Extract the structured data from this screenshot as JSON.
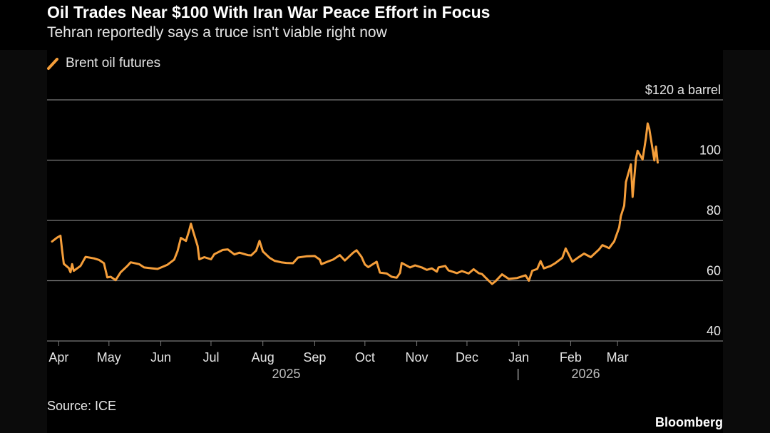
{
  "header": {
    "title": "Oil Trades Near $100 With Iran War Peace Effort in Focus",
    "subtitle": "Tehran reportedly says a truce isn't viable right now"
  },
  "footer": {
    "source": "Source: ICE",
    "brand": "Bloomberg"
  },
  "colors": {
    "line": "#f59e3a",
    "grid": "#7a7a7a",
    "background": "#000000"
  },
  "chart_data": {
    "type": "line",
    "title": "Oil Trades Near $100 With Iran War Peace Effort in Focus",
    "subtitle": "Tehran reportedly says a truce isn't viable right now",
    "legend": "top-left",
    "grid": "horizontal",
    "ylim": [
      40,
      120
    ],
    "y_ticks": [
      {
        "value": 120,
        "label": "$120 a barrel"
      },
      {
        "value": 100,
        "label": "100"
      },
      {
        "value": 80,
        "label": "80"
      },
      {
        "value": 60,
        "label": "60"
      },
      {
        "value": 40,
        "label": "40"
      }
    ],
    "xlim": [
      "2025-03-25",
      "2026-04-10"
    ],
    "x_ticks": [
      {
        "date": "2025-04-01",
        "label": "Apr"
      },
      {
        "date": "2025-05-01",
        "label": "May"
      },
      {
        "date": "2025-06-01",
        "label": "Jun"
      },
      {
        "date": "2025-07-01",
        "label": "Jul"
      },
      {
        "date": "2025-08-01",
        "label": "Aug"
      },
      {
        "date": "2025-09-01",
        "label": "Sep"
      },
      {
        "date": "2025-10-01",
        "label": "Oct"
      },
      {
        "date": "2025-11-01",
        "label": "Nov"
      },
      {
        "date": "2025-12-01",
        "label": "Dec"
      },
      {
        "date": "2026-01-01",
        "label": "Jan"
      },
      {
        "date": "2026-02-01",
        "label": "Feb"
      },
      {
        "date": "2026-03-01",
        "label": "Mar"
      }
    ],
    "year_labels": [
      {
        "date": "2025-08-15",
        "label": "2025"
      },
      {
        "date": "2026-02-10",
        "label": "2026"
      }
    ],
    "year_divider": "2026-01-01",
    "series": [
      {
        "name": "Brent oil futures",
        "color": "#f59e3a",
        "points": [
          [
            "2025-03-28",
            73.0
          ],
          [
            "2025-03-31",
            74.3
          ],
          [
            "2025-04-02",
            74.9
          ],
          [
            "2025-04-03",
            70.1
          ],
          [
            "2025-04-04",
            65.6
          ],
          [
            "2025-04-07",
            64.2
          ],
          [
            "2025-04-08",
            62.8
          ],
          [
            "2025-04-09",
            65.5
          ],
          [
            "2025-04-10",
            63.3
          ],
          [
            "2025-04-14",
            64.9
          ],
          [
            "2025-04-17",
            67.9
          ],
          [
            "2025-04-22",
            67.4
          ],
          [
            "2025-04-25",
            66.9
          ],
          [
            "2025-04-28",
            65.8
          ],
          [
            "2025-04-30",
            61.1
          ],
          [
            "2025-05-02",
            61.3
          ],
          [
            "2025-05-05",
            60.2
          ],
          [
            "2025-05-08",
            62.8
          ],
          [
            "2025-05-12",
            64.9
          ],
          [
            "2025-05-14",
            66.1
          ],
          [
            "2025-05-19",
            65.5
          ],
          [
            "2025-05-22",
            64.4
          ],
          [
            "2025-05-27",
            64.1
          ],
          [
            "2025-05-30",
            63.9
          ],
          [
            "2025-06-02",
            64.6
          ],
          [
            "2025-06-05",
            65.3
          ],
          [
            "2025-06-09",
            67.0
          ],
          [
            "2025-06-11",
            69.8
          ],
          [
            "2025-06-13",
            74.2
          ],
          [
            "2025-06-16",
            73.2
          ],
          [
            "2025-06-18",
            76.7
          ],
          [
            "2025-06-19",
            78.9
          ],
          [
            "2025-06-20",
            77.0
          ],
          [
            "2025-06-23",
            71.5
          ],
          [
            "2025-06-24",
            67.1
          ],
          [
            "2025-06-27",
            67.8
          ],
          [
            "2025-07-01",
            67.1
          ],
          [
            "2025-07-03",
            68.8
          ],
          [
            "2025-07-08",
            70.2
          ],
          [
            "2025-07-11",
            70.4
          ],
          [
            "2025-07-15",
            68.7
          ],
          [
            "2025-07-18",
            69.3
          ],
          [
            "2025-07-23",
            68.5
          ],
          [
            "2025-07-25",
            68.4
          ],
          [
            "2025-07-28",
            70.0
          ],
          [
            "2025-07-30",
            73.2
          ],
          [
            "2025-08-01",
            69.7
          ],
          [
            "2025-08-05",
            67.6
          ],
          [
            "2025-08-08",
            66.6
          ],
          [
            "2025-08-12",
            66.1
          ],
          [
            "2025-08-15",
            65.9
          ],
          [
            "2025-08-19",
            65.8
          ],
          [
            "2025-08-22",
            67.7
          ],
          [
            "2025-08-27",
            68.1
          ],
          [
            "2025-09-01",
            68.2
          ],
          [
            "2025-09-04",
            67.0
          ],
          [
            "2025-09-05",
            65.5
          ],
          [
            "2025-09-09",
            66.4
          ],
          [
            "2025-09-12",
            67.0
          ],
          [
            "2025-09-16",
            68.5
          ],
          [
            "2025-09-19",
            66.7
          ],
          [
            "2025-09-24",
            69.3
          ],
          [
            "2025-09-26",
            70.1
          ],
          [
            "2025-09-29",
            67.9
          ],
          [
            "2025-10-01",
            65.4
          ],
          [
            "2025-10-03",
            64.5
          ],
          [
            "2025-10-08",
            66.3
          ],
          [
            "2025-10-10",
            62.7
          ],
          [
            "2025-10-14",
            62.4
          ],
          [
            "2025-10-17",
            61.3
          ],
          [
            "2025-10-20",
            61.0
          ],
          [
            "2025-10-22",
            62.6
          ],
          [
            "2025-10-23",
            65.9
          ],
          [
            "2025-10-28",
            64.4
          ],
          [
            "2025-10-31",
            65.1
          ],
          [
            "2025-11-04",
            64.4
          ],
          [
            "2025-11-07",
            63.6
          ],
          [
            "2025-11-10",
            64.1
          ],
          [
            "2025-11-13",
            63.0
          ],
          [
            "2025-11-14",
            64.4
          ],
          [
            "2025-11-18",
            64.9
          ],
          [
            "2025-11-20",
            63.4
          ],
          [
            "2025-11-25",
            62.5
          ],
          [
            "2025-11-28",
            63.2
          ],
          [
            "2025-12-02",
            62.4
          ],
          [
            "2025-12-05",
            63.8
          ],
          [
            "2025-12-08",
            62.5
          ],
          [
            "2025-12-10",
            62.2
          ],
          [
            "2025-12-12",
            61.1
          ],
          [
            "2025-12-16",
            58.9
          ],
          [
            "2025-12-18",
            59.8
          ],
          [
            "2025-12-22",
            62.1
          ],
          [
            "2025-12-26",
            60.6
          ],
          [
            "2025-12-31",
            60.9
          ],
          [
            "2026-01-05",
            61.8
          ],
          [
            "2026-01-07",
            60.0
          ],
          [
            "2026-01-09",
            63.3
          ],
          [
            "2026-01-12",
            63.9
          ],
          [
            "2026-01-14",
            66.5
          ],
          [
            "2026-01-16",
            64.1
          ],
          [
            "2026-01-20",
            64.9
          ],
          [
            "2026-01-23",
            65.9
          ],
          [
            "2026-01-27",
            67.6
          ],
          [
            "2026-01-29",
            70.7
          ],
          [
            "2026-02-02",
            66.3
          ],
          [
            "2026-02-05",
            67.5
          ],
          [
            "2026-02-09",
            69.0
          ],
          [
            "2026-02-13",
            67.8
          ],
          [
            "2026-02-18",
            70.4
          ],
          [
            "2026-02-20",
            71.8
          ],
          [
            "2026-02-24",
            70.8
          ],
          [
            "2026-02-26",
            72.3
          ],
          [
            "2026-02-27",
            73.0
          ],
          [
            "2026-03-02",
            77.7
          ],
          [
            "2026-03-03",
            81.4
          ],
          [
            "2026-03-05",
            84.9
          ],
          [
            "2026-03-06",
            92.7
          ],
          [
            "2026-03-09",
            98.6
          ],
          [
            "2026-03-10",
            87.8
          ],
          [
            "2026-03-12",
            100.5
          ],
          [
            "2026-03-13",
            103.1
          ],
          [
            "2026-03-16",
            100.2
          ],
          [
            "2026-03-18",
            107.4
          ],
          [
            "2026-03-19",
            112.2
          ],
          [
            "2026-03-20",
            110.4
          ],
          [
            "2026-03-23",
            99.9
          ],
          [
            "2026-03-24",
            104.5
          ],
          [
            "2026-03-25",
            99.2
          ]
        ]
      }
    ]
  }
}
